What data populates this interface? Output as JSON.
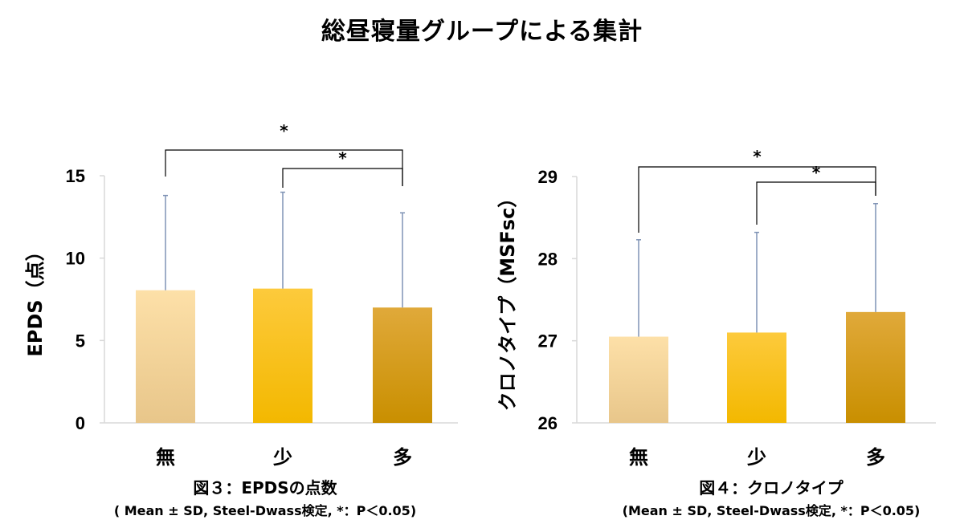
{
  "title": "総昼寝量グループによる集計",
  "chart_data": [
    {
      "type": "bar",
      "categories": [
        "無",
        "少",
        "多"
      ],
      "values": [
        8.05,
        8.15,
        7.0
      ],
      "error_sd": [
        5.75,
        5.85,
        5.75
      ],
      "ylabel": "EPDS（点）",
      "ylim": [
        0,
        15
      ],
      "yticks": [
        "0",
        "5",
        "10",
        "15"
      ],
      "significance": [
        {
          "from": "無",
          "to": "多",
          "label": "*"
        },
        {
          "from": "少",
          "to": "多",
          "label": "*"
        }
      ],
      "caption": "図３：EPDSの点数",
      "note": "( Mean ± SD, Steel-Dwass検定, *：P＜0.05)",
      "colors": {
        "無": [
          "#fde0a8",
          "#e8c68a"
        ],
        "少": [
          "#fdca3c",
          "#f3b800"
        ],
        "多": [
          "#e0a93a",
          "#c98f00"
        ]
      }
    },
    {
      "type": "bar",
      "categories": [
        "無",
        "少",
        "多"
      ],
      "values": [
        27.05,
        27.1,
        27.35
      ],
      "error_sd": [
        1.18,
        1.22,
        1.32
      ],
      "ylabel": "クロノタイプ（MSFsc）",
      "ylim": [
        26,
        29
      ],
      "yticks": [
        "26",
        "27",
        "28",
        "29"
      ],
      "significance": [
        {
          "from": "無",
          "to": "多",
          "label": "*"
        },
        {
          "from": "少",
          "to": "多",
          "label": "*"
        }
      ],
      "caption": "図４：クロノタイプ",
      "note": "(Mean ± SD, Steel-Dwass検定, *：P＜0.05)",
      "colors": {
        "無": [
          "#fde0a8",
          "#e8c68a"
        ],
        "少": [
          "#fdca3c",
          "#f3b800"
        ],
        "多": [
          "#e0a93a",
          "#c98f00"
        ]
      }
    }
  ]
}
